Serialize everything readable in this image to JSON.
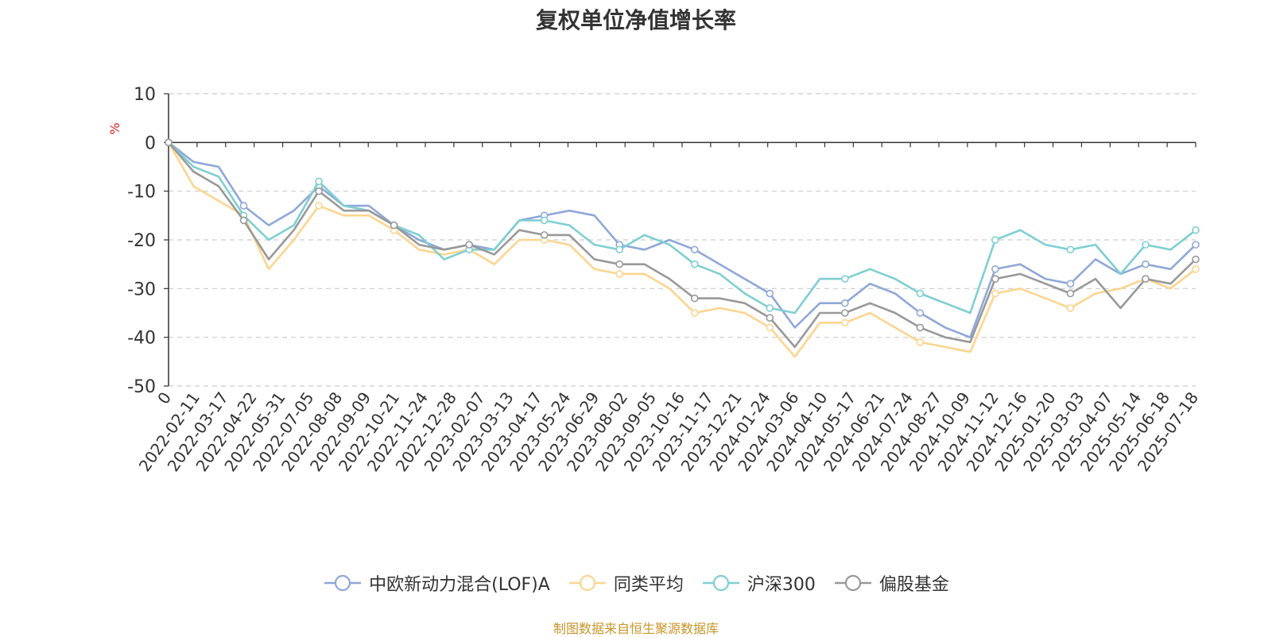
{
  "chart_data": {
    "type": "line",
    "title": "复权单位净值增长率",
    "ylabel": "%",
    "xlabel": "",
    "ylim": [
      -50,
      10
    ],
    "yticks": [
      10,
      0,
      -10,
      -20,
      -30,
      -40,
      -50
    ],
    "xticks": [
      "0",
      "2022-02-11",
      "2022-03-17",
      "2022-04-22",
      "2022-05-31",
      "2022-07-05",
      "2022-08-08",
      "2022-09-09",
      "2022-10-21",
      "2022-11-24",
      "2022-12-28",
      "2023-02-07",
      "2023-03-13",
      "2023-04-17",
      "2023-05-24",
      "2023-06-29",
      "2023-08-02",
      "2023-09-05",
      "2023-10-16",
      "2023-11-17",
      "2023-12-21",
      "2024-01-24",
      "2024-03-06",
      "2024-04-10",
      "2024-05-17",
      "2024-06-21",
      "2024-07-24",
      "2024-08-27",
      "2024-10-09",
      "2024-11-12",
      "2024-12-16",
      "2025-01-20",
      "2025-03-03",
      "2025-04-07",
      "2025-05-14",
      "2025-06-18",
      "2025-07-18"
    ],
    "grid": true,
    "legend_position": "bottom",
    "series": [
      {
        "name": "中欧新动力混合(LOF)A",
        "color": "#8fa8d8",
        "values": [
          0,
          -4,
          -5,
          -13,
          -17,
          -14,
          -9,
          -13,
          -13,
          -17,
          -20,
          -22,
          -21,
          -22,
          -16,
          -15,
          -14,
          -15,
          -21,
          -22,
          -20,
          -22,
          -25,
          -28,
          -31,
          -38,
          -33,
          -33,
          -29,
          -31,
          -35,
          -38,
          -40,
          -26,
          -25,
          -28,
          -29,
          -24,
          -27,
          -25,
          -26,
          -21
        ]
      },
      {
        "name": "同类平均",
        "color": "#fdd58f",
        "values": [
          0,
          -9,
          -12,
          -15,
          -26,
          -20,
          -13,
          -15,
          -15,
          -18,
          -22,
          -23,
          -22,
          -25,
          -20,
          -20,
          -21,
          -26,
          -27,
          -27,
          -30,
          -35,
          -34,
          -35,
          -38,
          -44,
          -37,
          -37,
          -35,
          -38,
          -41,
          -42,
          -43,
          -31,
          -30,
          -32,
          -34,
          -31,
          -30,
          -28,
          -30,
          -26
        ]
      },
      {
        "name": "沪深300",
        "color": "#7fcfd2",
        "values": [
          0,
          -5,
          -7,
          -15,
          -20,
          -17,
          -8,
          -13,
          -14,
          -17,
          -19,
          -24,
          -22,
          -22,
          -16,
          -16,
          -17,
          -21,
          -22,
          -19,
          -21,
          -25,
          -27,
          -31,
          -34,
          -35,
          -28,
          -28,
          -26,
          -28,
          -31,
          -33,
          -35,
          -20,
          -18,
          -21,
          -22,
          -21,
          -27,
          -21,
          -22,
          -18
        ]
      },
      {
        "name": "偏股基金",
        "color": "#999999",
        "values": [
          0,
          -6,
          -9,
          -16,
          -24,
          -18,
          -10,
          -14,
          -14,
          -17,
          -21,
          -22,
          -21,
          -23,
          -18,
          -19,
          -19,
          -24,
          -25,
          -25,
          -28,
          -32,
          -32,
          -33,
          -36,
          -42,
          -35,
          -35,
          -33,
          -35,
          -38,
          -40,
          -41,
          -28,
          -27,
          -29,
          -31,
          -28,
          -34,
          -28,
          -29,
          -24
        ]
      }
    ]
  },
  "footer": {
    "source_note": "制图数据来自恒生聚源数据库"
  }
}
